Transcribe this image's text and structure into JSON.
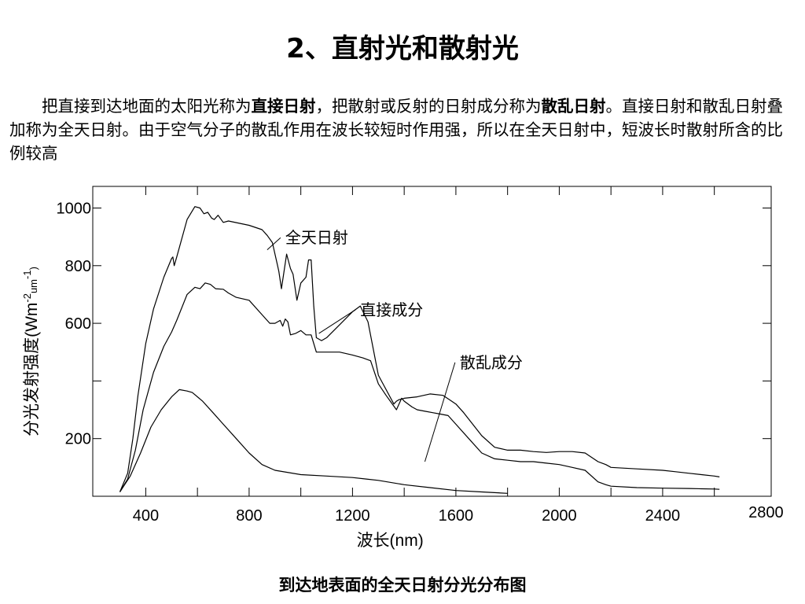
{
  "slide": {
    "title": "2、直射光和散射光",
    "paragraph": {
      "t1": "把直接到达地面的太阳光称为",
      "b1": "直接日射",
      "t2": "，把散射或反射的日射成分称为",
      "b2": "散乱日射",
      "t3": "。直接日射和散乱日射叠加称为全天日射。由于空气分子的散乱作用在波长较短时作用强，所以在全天日射中，短波长时散射所含的比例较高"
    },
    "caption": "到达地表面的全天日射分光分布图"
  },
  "chart_data": {
    "type": "line",
    "xlabel": "波长(nm)",
    "ylabel": "分光发射强度(Wm-2um-1)",
    "ylabel_parts": {
      "main": "分光发射强度(Wm",
      "sup1": "-2",
      "mid": "um",
      "sup2": "-1",
      "end": ")"
    },
    "xlim": [
      195,
      2820
    ],
    "ylim": [
      0,
      1075
    ],
    "xticks": [
      400,
      800,
      1200,
      1600,
      2000,
      2400,
      2800
    ],
    "yticks": [
      200,
      600,
      800,
      1000
    ],
    "xtick_marks": [
      400,
      600,
      800,
      1000,
      1200,
      1400,
      1600,
      1800,
      2000,
      2200,
      2400,
      2600
    ],
    "ytick_marks": [
      200,
      400,
      600,
      800,
      1000
    ],
    "grid": false,
    "series": [
      {
        "name": "全天日射",
        "x": [
          300,
          330,
          350,
          370,
          400,
          430,
          470,
          500,
          505,
          510,
          520,
          560,
          590,
          610,
          625,
          640,
          655,
          665,
          680,
          700,
          720,
          800,
          850,
          870,
          890,
          910,
          915,
          925,
          935,
          945,
          960,
          970,
          985,
          1000,
          1020,
          1030,
          1040,
          1050,
          1060,
          1080,
          1100,
          1150,
          1200,
          1230,
          1260,
          1300,
          1360,
          1370,
          1380,
          1400,
          1450,
          1500,
          1550,
          1600,
          1630,
          1700,
          1750,
          1800,
          1850,
          1900,
          1950,
          2000,
          2050,
          2100,
          2150,
          2180,
          2200,
          2300,
          2400,
          2450,
          2500,
          2550,
          2600,
          2620
        ],
        "y": [
          15,
          80,
          200,
          350,
          530,
          650,
          760,
          825,
          830,
          800,
          830,
          960,
          1005,
          1000,
          980,
          985,
          965,
          960,
          975,
          950,
          955,
          940,
          925,
          905,
          880,
          800,
          780,
          720,
          780,
          840,
          790,
          770,
          680,
          740,
          760,
          820,
          820,
          660,
          550,
          540,
          550,
          595,
          640,
          660,
          605,
          420,
          320,
          330,
          335,
          340,
          345,
          355,
          350,
          320,
          290,
          210,
          170,
          160,
          160,
          155,
          152,
          155,
          155,
          150,
          120,
          110,
          100,
          95,
          90,
          85,
          80,
          75,
          70,
          67
        ]
      },
      {
        "name": "直接成分",
        "x": [
          300,
          330,
          360,
          390,
          430,
          470,
          500,
          520,
          560,
          590,
          610,
          630,
          650,
          670,
          700,
          720,
          750,
          800,
          850,
          880,
          900,
          920,
          930,
          940,
          950,
          960,
          980,
          1000,
          1020,
          1040,
          1060,
          1100,
          1150,
          1200,
          1240,
          1270,
          1300,
          1330,
          1370,
          1390,
          1400,
          1430,
          1450,
          1480,
          1510,
          1540,
          1570,
          1600,
          1650,
          1700,
          1750,
          1800,
          1850,
          1900,
          1950,
          2000,
          2050,
          2100,
          2150,
          2180,
          2200,
          2300,
          2400,
          2500,
          2550,
          2600,
          2620
        ],
        "y": [
          15,
          60,
          160,
          300,
          430,
          520,
          570,
          610,
          700,
          725,
          720,
          740,
          735,
          720,
          718,
          705,
          690,
          680,
          630,
          600,
          600,
          610,
          590,
          615,
          605,
          560,
          565,
          575,
          560,
          560,
          500,
          500,
          500,
          490,
          480,
          470,
          390,
          350,
          300,
          340,
          330,
          310,
          300,
          295,
          290,
          285,
          280,
          250,
          200,
          150,
          130,
          125,
          120,
          120,
          115,
          110,
          100,
          90,
          50,
          40,
          35,
          30,
          28,
          27,
          26,
          25,
          24
        ]
      },
      {
        "name": "散乱成分",
        "x": [
          300,
          340,
          380,
          420,
          460,
          500,
          530,
          560,
          580,
          620,
          660,
          700,
          750,
          800,
          850,
          900,
          1000,
          1100,
          1200,
          1250,
          1300,
          1400,
          1500,
          1600,
          1700,
          1800
        ],
        "y": [
          15,
          70,
          150,
          240,
          300,
          345,
          370,
          365,
          360,
          330,
          290,
          250,
          200,
          150,
          110,
          90,
          75,
          70,
          65,
          60,
          55,
          40,
          30,
          20,
          15,
          10
        ]
      }
    ],
    "annotations": [
      {
        "text": "全天日射",
        "x": 940,
        "y": 878,
        "at_x": 870,
        "at_y": 855
      },
      {
        "text": "直接成分",
        "x": 1230,
        "y": 628,
        "at_x": 1070,
        "at_y": 565
      },
      {
        "text": "散乱成分",
        "x": 1615,
        "y": 445,
        "at_x": 1480,
        "at_y": 120
      }
    ]
  }
}
